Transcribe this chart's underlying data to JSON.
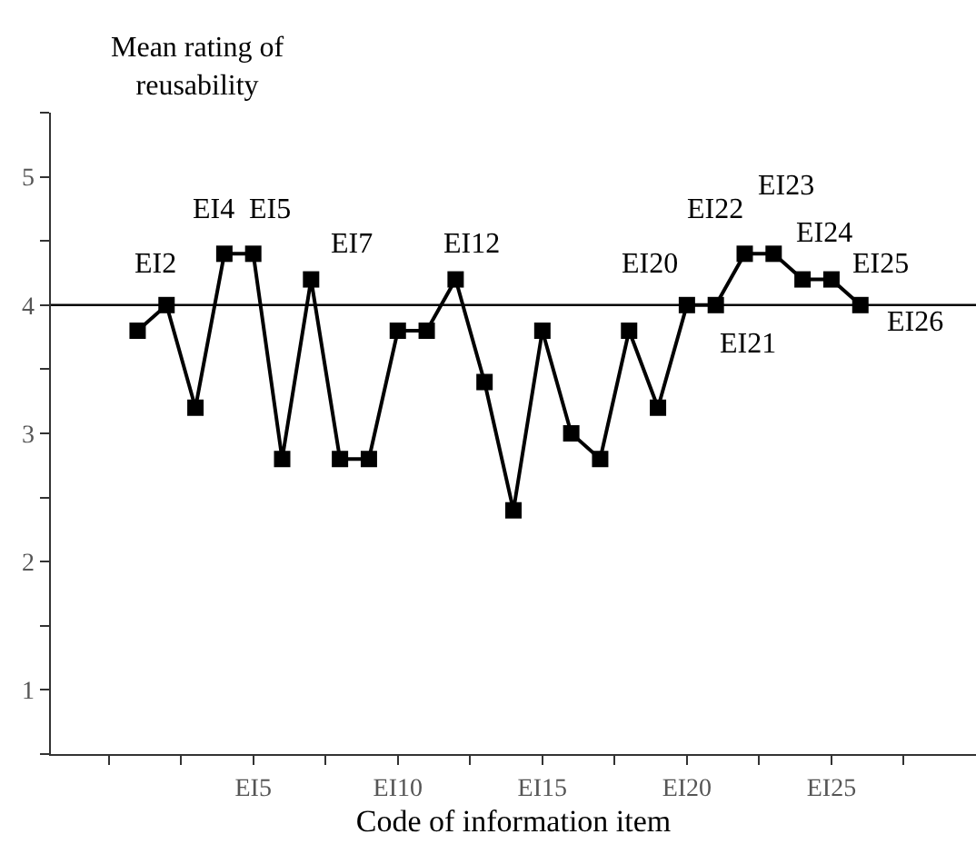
{
  "chart_data": {
    "type": "line",
    "ylabel": "Mean rating of\nreusability",
    "xlabel": "Code of information item",
    "categories": [
      null,
      null,
      null,
      null,
      "EI5",
      null,
      null,
      null,
      null,
      "EI10",
      null,
      null,
      null,
      null,
      "EI15",
      null,
      null,
      null,
      null,
      "EI20",
      null,
      null,
      null,
      null,
      "EI25",
      null
    ],
    "series": [
      {
        "color": "#000000",
        "values": [
          3.8,
          4.0,
          3.2,
          4.4,
          4.4,
          2.8,
          4.2,
          2.8,
          2.8,
          3.8,
          3.8,
          4.2,
          3.4,
          2.4,
          3.8,
          3.0,
          2.8,
          3.8,
          3.2,
          4.0,
          4.0,
          4.4,
          4.4,
          4.2,
          4.2,
          4.0
        ]
      }
    ],
    "ylim": [
      0.5,
      5.5
    ],
    "yticks": [
      1,
      2,
      3,
      4,
      5
    ],
    "ref_lines": [
      {
        "axis": "y",
        "value": 4,
        "color": "#000000"
      }
    ],
    "annotations": [
      {
        "text": "EI2",
        "y": 4.0
      },
      {
        "text": "EI4",
        "y": 4.4
      },
      {
        "text": "EI5",
        "x": "EI5",
        "y": 4.4
      },
      "EI7",
      {
        "text": "EI12",
        "y": 4.2
      },
      {
        "text": "EI20",
        "x": "EI20",
        "y": 4.0
      },
      {
        "text": "EI21",
        "y": 4.0
      },
      "EI22",
      {
        "text": "EI23",
        "y": 4.4
      },
      {
        "text": "EI24",
        "y": 4.2
      },
      {
        "text": "EI25",
        "x": "EI25",
        "y": 4.2
      },
      {
        "text": "EI26",
        "y": 4.0
      }
    ],
    "marker": "square",
    "line_style": "solid",
    "grid": false
  }
}
